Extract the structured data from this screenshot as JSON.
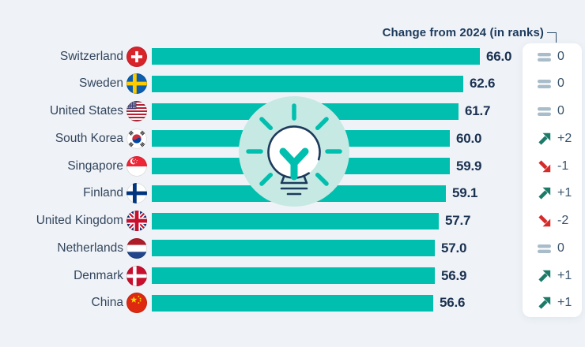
{
  "header": {
    "change_label": "Change from 2024 (in ranks)"
  },
  "colors": {
    "bar": "#00BFAE",
    "up": "#1B7A68",
    "down": "#D62B2B",
    "equal_icon": "#A9BCC9",
    "navy": "#1D3A5C",
    "background": "#EFF3F8",
    "panel": "#FFFFFF",
    "badge_circle": "#C6E9E3"
  },
  "chart_data": {
    "type": "bar",
    "orientation": "horizontal",
    "title": "",
    "annotation": "Change from 2024 (in ranks)",
    "categories": [
      "Switzerland",
      "Sweden",
      "United States",
      "South Korea",
      "Singapore",
      "Finland",
      "United Kingdom",
      "Netherlands",
      "Denmark",
      "China"
    ],
    "values": [
      66.0,
      62.6,
      61.7,
      60.0,
      59.9,
      59.1,
      57.7,
      57.0,
      56.9,
      56.6
    ],
    "rank_changes": [
      0,
      0,
      0,
      2,
      -1,
      1,
      -2,
      0,
      1,
      1
    ],
    "xlim": [
      0,
      66
    ],
    "value_labels": true,
    "legend": "none"
  },
  "rows": [
    {
      "country": "Switzerland",
      "flag": "ch",
      "value": "66.0",
      "change": "0",
      "direction": "equal"
    },
    {
      "country": "Sweden",
      "flag": "se",
      "value": "62.6",
      "change": "0",
      "direction": "equal"
    },
    {
      "country": "United States",
      "flag": "us",
      "value": "61.7",
      "change": "0",
      "direction": "equal"
    },
    {
      "country": "South Korea",
      "flag": "kr",
      "value": "60.0",
      "change": "+2",
      "direction": "up"
    },
    {
      "country": "Singapore",
      "flag": "sg",
      "value": "59.9",
      "change": "-1",
      "direction": "down"
    },
    {
      "country": "Finland",
      "flag": "fi",
      "value": "59.1",
      "change": "+1",
      "direction": "up"
    },
    {
      "country": "United Kingdom",
      "flag": "gb",
      "value": "57.7",
      "change": "-2",
      "direction": "down"
    },
    {
      "country": "Netherlands",
      "flag": "nl",
      "value": "57.0",
      "change": "0",
      "direction": "equal"
    },
    {
      "country": "Denmark",
      "flag": "dk",
      "value": "56.9",
      "change": "+1",
      "direction": "up"
    },
    {
      "country": "China",
      "flag": "cn",
      "value": "56.6",
      "change": "+1",
      "direction": "up"
    }
  ]
}
